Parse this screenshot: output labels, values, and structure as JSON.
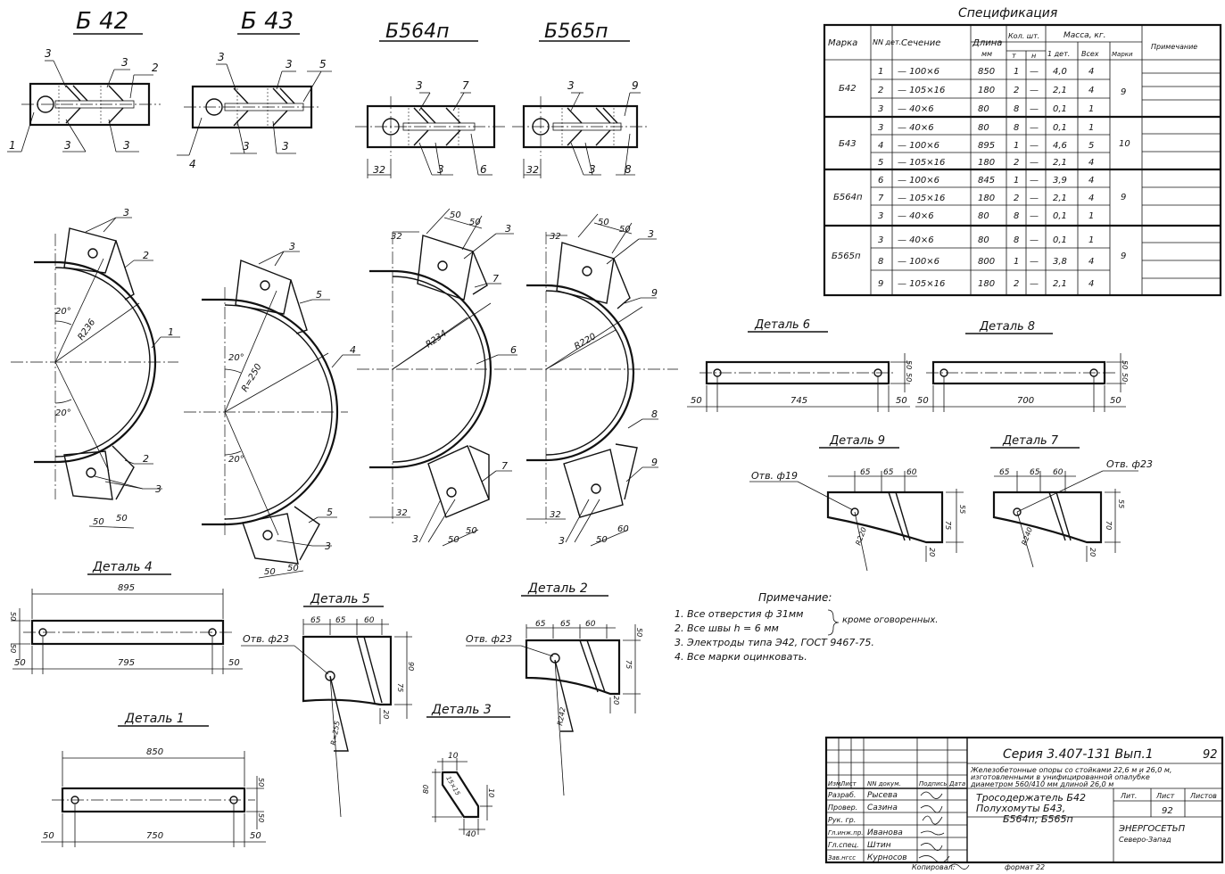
{
  "marks": {
    "b42": "Б 42",
    "b43": "Б 43",
    "b564": "Б564п",
    "b565": "Б565п"
  },
  "spec": {
    "title": "Спецификация",
    "headers": {
      "marka": "Марка",
      "pos": "NN дет.",
      "section": "Сечение",
      "length": "Длина",
      "length_unit": "мм",
      "qty": "Кол. шт.",
      "qty_t": "т",
      "qty_n": "н",
      "mass": "Масса, кг.",
      "mass_det": "1 дет.",
      "mass_all": "Всех",
      "mass_mark": "Марки",
      "note": "Примечание"
    },
    "groups": [
      {
        "marka": "Б42",
        "mark_mass": "9",
        "rows": [
          {
            "pos": "1",
            "section": "— 100×6",
            "length": "850",
            "t": "1",
            "n": "—",
            "one": "4,0",
            "all": "4"
          },
          {
            "pos": "2",
            "section": "— 105×16",
            "length": "180",
            "t": "2",
            "n": "—",
            "one": "2,1",
            "all": "4"
          },
          {
            "pos": "3",
            "section": "— 40×6",
            "length": "80",
            "t": "8",
            "n": "—",
            "one": "0,1",
            "all": "1"
          }
        ]
      },
      {
        "marka": "Б43",
        "mark_mass": "10",
        "rows": [
          {
            "pos": "3",
            "section": "— 40×6",
            "length": "80",
            "t": "8",
            "n": "—",
            "one": "0,1",
            "all": "1"
          },
          {
            "pos": "4",
            "section": "— 100×6",
            "length": "895",
            "t": "1",
            "n": "—",
            "one": "4,6",
            "all": "5"
          },
          {
            "pos": "5",
            "section": "— 105×16",
            "length": "180",
            "t": "2",
            "n": "—",
            "one": "2,1",
            "all": "4"
          }
        ]
      },
      {
        "marka": "Б564п",
        "mark_mass": "9",
        "rows": [
          {
            "pos": "6",
            "section": "— 100×6",
            "length": "845",
            "t": "1",
            "n": "—",
            "one": "3,9",
            "all": "4"
          },
          {
            "pos": "7",
            "section": "— 105×16",
            "length": "180",
            "t": "2",
            "n": "—",
            "one": "2,1",
            "all": "4"
          },
          {
            "pos": "3",
            "section": "— 40×6",
            "length": "80",
            "t": "8",
            "n": "—",
            "one": "0,1",
            "all": "1"
          }
        ]
      },
      {
        "marka": "Б565п",
        "mark_mass": "9",
        "rows": [
          {
            "pos": "3",
            "section": "— 40×6",
            "length": "80",
            "t": "8",
            "n": "—",
            "one": "0,1",
            "all": "1"
          },
          {
            "pos": "8",
            "section": "— 100×6",
            "length": "800",
            "t": "1",
            "n": "—",
            "one": "3,8",
            "all": "4"
          },
          {
            "pos": "9",
            "section": "— 105×16",
            "length": "180",
            "t": "2",
            "n": "—",
            "one": "2,1",
            "all": "4"
          }
        ]
      }
    ]
  },
  "radius_labels": {
    "b42": "R236",
    "b43": "R=250",
    "b564": "R234",
    "b565": "R220"
  },
  "angle_label": "20°",
  "dims": {
    "d50": "50",
    "d32": "32",
    "d65": "65",
    "d60": "60",
    "d10": "10",
    "d20": "20",
    "d40": "40",
    "d75": "75",
    "d70": "70",
    "d80": "80",
    "d90": "90",
    "d55": "55"
  },
  "details": {
    "d6": {
      "title": "Деталь 6",
      "len": "745"
    },
    "d8": {
      "title": "Деталь 8",
      "len": "700"
    },
    "d9": {
      "title": "Деталь 9",
      "hole": "Отв. ф19",
      "r": "R220"
    },
    "d7": {
      "title": "Деталь 7",
      "hole": "Отв. ф23",
      "r": "R240"
    },
    "d4": {
      "title": "Деталь 4",
      "total": "895",
      "inner": "795"
    },
    "d5": {
      "title": "Деталь 5",
      "hole": "Отв. ф23",
      "r": "R=255"
    },
    "d2": {
      "title": "Деталь 2",
      "hole": "Отв. ф23",
      "r": "R242"
    },
    "d1": {
      "title": "Деталь 1",
      "total": "850",
      "inner": "750"
    },
    "d3": {
      "title": "Деталь 3",
      "k": "15×15"
    }
  },
  "notes": {
    "title": "Примечание:",
    "n1a": "1. Все отверстия ф 31мм",
    "n2a": "2. Все швы h = 6 мм",
    "brace": "кроме оговоренных.",
    "n3": "3. Электроды типа Э42, ГОСТ 9467-75.",
    "n4": "4. Все марки оцинковать."
  },
  "title_block": {
    "series": "Серия 3.407-131 Вып.1",
    "sheet_no": "92",
    "desc1": "Железобетонные опоры со стойками 22,6 м и 26,0 м,",
    "desc2": "изготовленными в унифицированной опалубке",
    "desc3": "диаметром 560/410 мм длиной 26,0 м",
    "name1": "Тросодержатель Б42",
    "name2": "Полухомуты Б43,",
    "name3": "Б564п; Б565п",
    "lit": "Лит.",
    "list": "Лист",
    "listov": "Листов",
    "list_val": "92",
    "org1": "ЭНЕРГОСЕТЬП",
    "org2": "Северо-Запад",
    "head": {
      "c1": "Изм.",
      "c2": "Лист",
      "c3": "NN докум.",
      "c4": "Подпись",
      "c5": "Дата"
    },
    "people": [
      {
        "role": "Разраб.",
        "name": "Рысева"
      },
      {
        "role": "Провер.",
        "name": "Сазина"
      },
      {
        "role": "Рук. гр.",
        "name": ""
      },
      {
        "role": "Гл.инж.пр.",
        "name": "Иванова"
      },
      {
        "role": "Гл.спец.",
        "name": "Штин"
      },
      {
        "role": "Зав.нгсс",
        "name": "Курносов"
      }
    ],
    "footer": "Копировал:",
    "format": "формат 22"
  }
}
